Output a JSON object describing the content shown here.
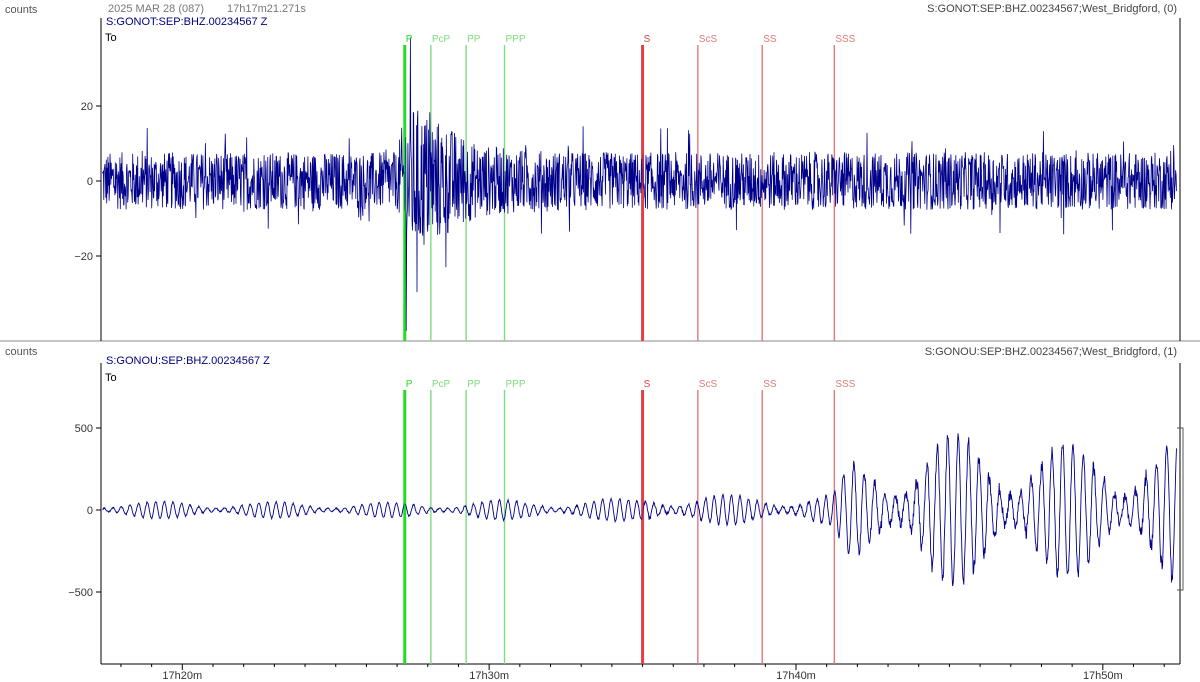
{
  "header": {
    "date": "2025 MAR 28 (087)",
    "time": "17h17m21.271s"
  },
  "panels": [
    {
      "ylabel": "counts",
      "channel": "S:GONOT:SEP:BHZ.00234567 Z",
      "station": "S:GONOT:SEP:BHZ.00234567;West_Bridgford, (0)",
      "origin_label": "To",
      "yticks": [
        20,
        0,
        -20
      ],
      "ylim": [
        -40,
        40
      ]
    },
    {
      "ylabel": "counts",
      "channel": "S:GONOU:SEP:BHZ.00234567 Z",
      "station": "S:GONOU:SEP:BHZ.00234567;West_Bridgford, (1)",
      "origin_label": "To",
      "yticks": [
        500,
        0,
        -500
      ],
      "ylim": [
        -1000,
        1000
      ]
    }
  ],
  "xaxis": {
    "ticks": [
      {
        "label": "17h20m",
        "minute": 20
      },
      {
        "label": "17h30m",
        "minute": 30
      },
      {
        "label": "17h40m",
        "minute": 40
      },
      {
        "label": "17h50m",
        "minute": 50
      }
    ],
    "xlim_minutes": [
      17.35,
      52.45
    ]
  },
  "chart_data": {
    "type": "line",
    "series": [
      {
        "name": "S:GONOT:SEP:BHZ.00234567 Z",
        "color": "#00008b",
        "envelope": [
          [
            17.4,
            11
          ],
          [
            27.0,
            11
          ],
          [
            27.3,
            30
          ],
          [
            28.0,
            26
          ],
          [
            28.8,
            20
          ],
          [
            29.6,
            14
          ],
          [
            31.0,
            12
          ],
          [
            34.0,
            11
          ],
          [
            42.0,
            11
          ],
          [
            52.4,
            11
          ]
        ]
      },
      {
        "name": "S:GONOU:SEP:BHZ.00234567 Z",
        "color": "#00008b",
        "envelope": [
          [
            17.4,
            55
          ],
          [
            27.0,
            45
          ],
          [
            30.0,
            60
          ],
          [
            34.8,
            70
          ],
          [
            35.2,
            120
          ],
          [
            36.5,
            90
          ],
          [
            41.2,
            100
          ],
          [
            41.8,
            300
          ],
          [
            44.0,
            430
          ],
          [
            46.0,
            480
          ],
          [
            48.0,
            420
          ],
          [
            50.0,
            400
          ],
          [
            52.4,
            450
          ]
        ]
      }
    ],
    "phases": [
      {
        "label": "P",
        "minute": 27.25,
        "color": "#22dd22",
        "bold": true
      },
      {
        "label": "PcP",
        "minute": 28.1,
        "color": "#7ddc7d",
        "bold": false
      },
      {
        "label": "PP",
        "minute": 29.25,
        "color": "#7ddc7d",
        "bold": false
      },
      {
        "label": "PPP",
        "minute": 30.5,
        "color": "#7ddc7d",
        "bold": false
      },
      {
        "label": "S",
        "minute": 35.0,
        "color": "#dd4444",
        "bold": true
      },
      {
        "label": "ScS",
        "minute": 36.8,
        "color": "#e37a7a",
        "bold": false
      },
      {
        "label": "SS",
        "minute": 38.9,
        "color": "#e37a7a",
        "bold": false
      },
      {
        "label": "SSS",
        "minute": 41.25,
        "color": "#e37a7a",
        "bold": false
      }
    ]
  }
}
